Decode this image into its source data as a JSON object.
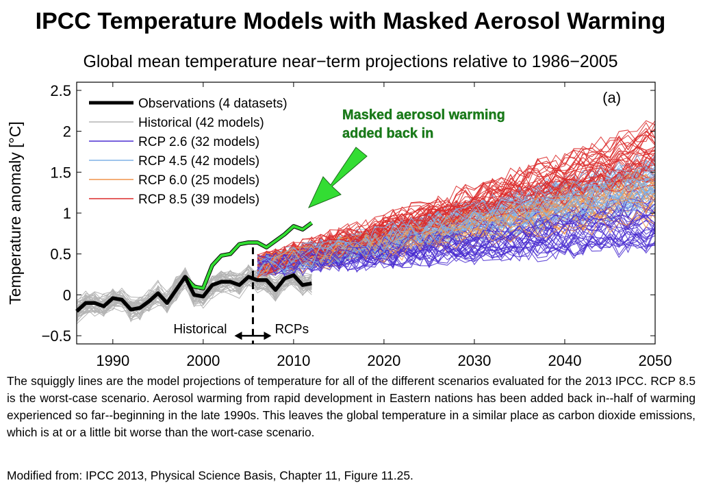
{
  "title": "IPCC Temperature Models with Masked Aerosol Warming",
  "subtitle": "Global mean temperature near−term projections relative to 1986−2005",
  "caption": "The squiggly lines are the model projections of temperature for all of the different scenarios evaluated for the 2013 IPCC. RCP 8.5 is the worst-case scenario. Aerosol warming from rapid development in Eastern nations has been added back in--half of warming experienced so far--beginning in the late 1990s. This leaves the global temperature in a similar place as carbon dioxide emissions, which is at or a little bit worse than the wort-case scenario.",
  "source": "Modified from: IPCC 2013, Physical Science Basis, Chapter 11, Figure 11.25.",
  "chart_data": {
    "type": "line",
    "panel_label": "(a)",
    "ylabel": "Temperature anomaly  [°C]",
    "xlim": [
      1986,
      2050
    ],
    "ylim": [
      -0.6,
      2.6
    ],
    "xticks": [
      1990,
      2000,
      2010,
      2020,
      2030,
      2040,
      2050
    ],
    "yticks": [
      -0.5,
      0,
      0.5,
      1,
      1.5,
      2,
      2.5
    ],
    "ytick_labels": [
      "−0.5",
      "0",
      "0.5",
      "1",
      "1.5",
      "2",
      "2.5"
    ],
    "legend_position": "top-left",
    "divider_year": 2005.5,
    "period_labels": [
      "Historical",
      "RCPs"
    ],
    "annotation": "Masked aerosol warming\nadded back in",
    "colors": {
      "observations": "#000000",
      "historical": "#b4b4b4",
      "rcp26": "#4a2dd0",
      "rcp45": "#7fb0e6",
      "rcp60": "#f0944a",
      "rcp85": "#dc2a2a",
      "masked": "#33dd33",
      "annotation": "#1a7a1a"
    },
    "series": [
      {
        "name": "Observations (4 datasets)",
        "key": "observations"
      },
      {
        "name": "Historical (42 models)",
        "key": "historical"
      },
      {
        "name": "RCP 2.6 (32 models)",
        "key": "rcp26"
      },
      {
        "name": "RCP 4.5 (42 models)",
        "key": "rcp45"
      },
      {
        "name": "RCP 6.0 (25 models)",
        "key": "rcp60"
      },
      {
        "name": "RCP 8.5 (39 models)",
        "key": "rcp85"
      }
    ],
    "observations": {
      "x": [
        1986,
        1987,
        1988,
        1989,
        1990,
        1991,
        1992,
        1993,
        1994,
        1995,
        1996,
        1997,
        1998,
        1999,
        2000,
        2001,
        2002,
        2003,
        2004,
        2005,
        2006,
        2007,
        2008,
        2009,
        2010,
        2011,
        2012
      ],
      "y": [
        -0.2,
        -0.1,
        -0.1,
        -0.14,
        -0.04,
        -0.06,
        -0.18,
        -0.16,
        -0.08,
        0.02,
        -0.1,
        0.06,
        0.22,
        0.0,
        -0.02,
        0.12,
        0.16,
        0.16,
        0.12,
        0.22,
        0.18,
        0.18,
        0.06,
        0.2,
        0.24,
        0.12,
        0.14
      ]
    },
    "masked_aerosol": {
      "x": [
        1998,
        1999,
        2000,
        2001,
        2002,
        2003,
        2004,
        2005,
        2006,
        2007,
        2008,
        2009,
        2010,
        2011,
        2012
      ],
      "y": [
        0.22,
        0.1,
        0.08,
        0.36,
        0.48,
        0.5,
        0.62,
        0.64,
        0.64,
        0.58,
        0.66,
        0.74,
        0.84,
        0.8,
        0.88
      ]
    },
    "historical_band": {
      "x_range": [
        1986,
        2012
      ],
      "center_start": -0.14,
      "center_end": 0.16,
      "spread": 0.22,
      "models": 42
    },
    "rcp_projections": [
      {
        "key": "rcp26",
        "models": 32,
        "start": 0.35,
        "end_2050": 0.9,
        "spread": 0.35
      },
      {
        "key": "rcp45",
        "models": 42,
        "start": 0.35,
        "end_2050": 1.35,
        "spread": 0.35
      },
      {
        "key": "rcp60",
        "models": 25,
        "start": 0.35,
        "end_2050": 1.2,
        "spread": 0.35
      },
      {
        "key": "rcp85",
        "models": 39,
        "start": 0.35,
        "end_2050": 1.75,
        "spread": 0.4
      }
    ]
  }
}
